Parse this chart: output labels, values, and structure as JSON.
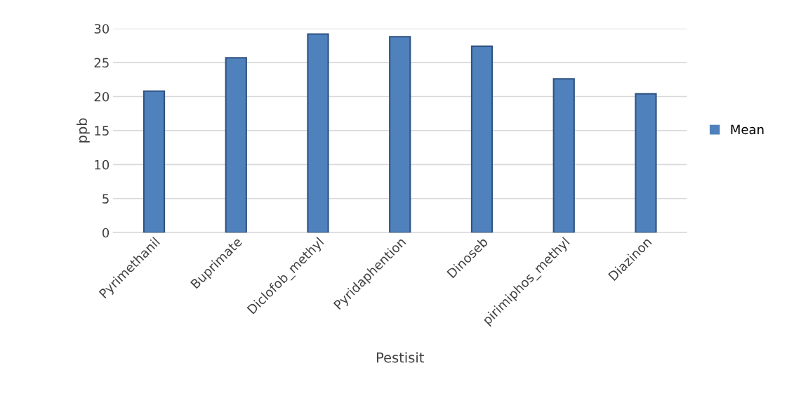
{
  "chart_data": {
    "type": "bar",
    "xlabel": "Pestisit",
    "ylabel": "ppb",
    "categories": [
      "Pyrimethanil",
      "Buprimate",
      "Diclofob_methyl",
      "Pyridaphention",
      "Dinoseb",
      "pirimiphos_methyl",
      "Diazinon"
    ],
    "series": [
      {
        "name": "Mean",
        "color": "#4f81bd",
        "values": [
          20.8,
          25.7,
          29.2,
          28.8,
          27.4,
          22.6,
          20.4
        ]
      }
    ],
    "ylim": [
      0,
      30
    ],
    "yticks": [
      0,
      5,
      10,
      15,
      20,
      25,
      30
    ],
    "grid": "y",
    "legend": "right"
  }
}
